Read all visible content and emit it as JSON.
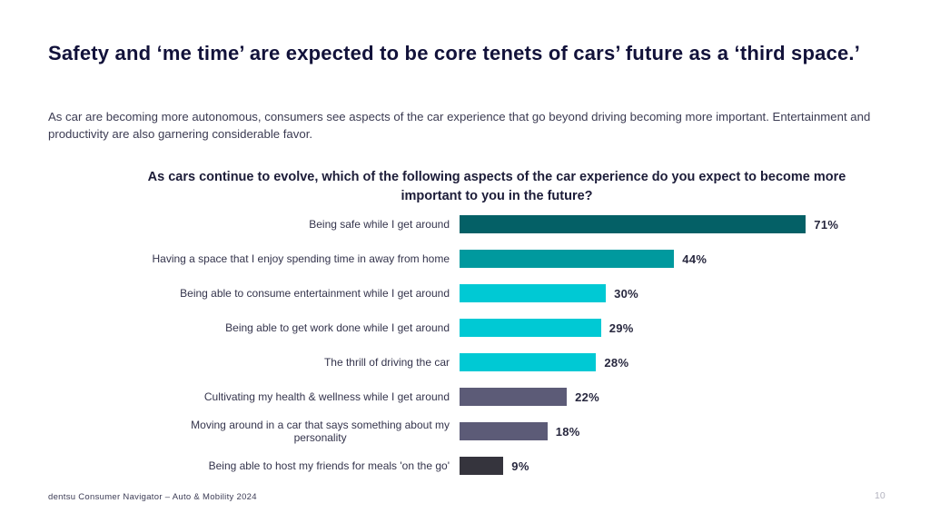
{
  "slide": {
    "title": "Safety and ‘me time’ are expected to be core tenets of cars’ future as a ‘third space.’",
    "subtitle": "As car are becoming more autonomous, consumers see aspects of the car experience that go beyond driving becoming more important. Entertainment and productivity are also garnering considerable favor.",
    "footer": "dentsu Consumer Navigator – Auto & Mobility 2024",
    "page_number": "10"
  },
  "colors": {
    "title_text": "#12123a",
    "body_text": "#3b3b52",
    "value_text": "#28283f",
    "page_number_text": "#b3b3bf",
    "dark_teal": "#046066",
    "mid_teal": "#00999e",
    "cyan": "#00c9d4",
    "slate": "#5c5b77",
    "charcoal": "#35343d"
  },
  "chart_data": {
    "type": "bar",
    "orientation": "horizontal",
    "title": "As cars continue to evolve, which of the following aspects of the car experience do you expect to become more important to you in the future?",
    "categories": [
      "Being safe while I get around",
      "Having a space that I enjoy spending time in away from home",
      "Being able to consume entertainment while I get around",
      "Being able to get work done while I get around",
      "The thrill of driving the car",
      "Cultivating my health & wellness while I get around",
      "Moving around in a car that says something about my\npersonality",
      "Being able to host my friends for meals 'on the go'"
    ],
    "values": [
      71,
      44,
      30,
      29,
      28,
      22,
      18,
      9
    ],
    "value_suffix": "%",
    "bar_colors": [
      "#046066",
      "#00999e",
      "#00c9d4",
      "#00c9d4",
      "#00c9d4",
      "#5c5b77",
      "#5c5b77",
      "#35343d"
    ],
    "xlim": [
      0,
      100
    ],
    "grid": false,
    "legend": false,
    "data_labels": "outside-end"
  }
}
